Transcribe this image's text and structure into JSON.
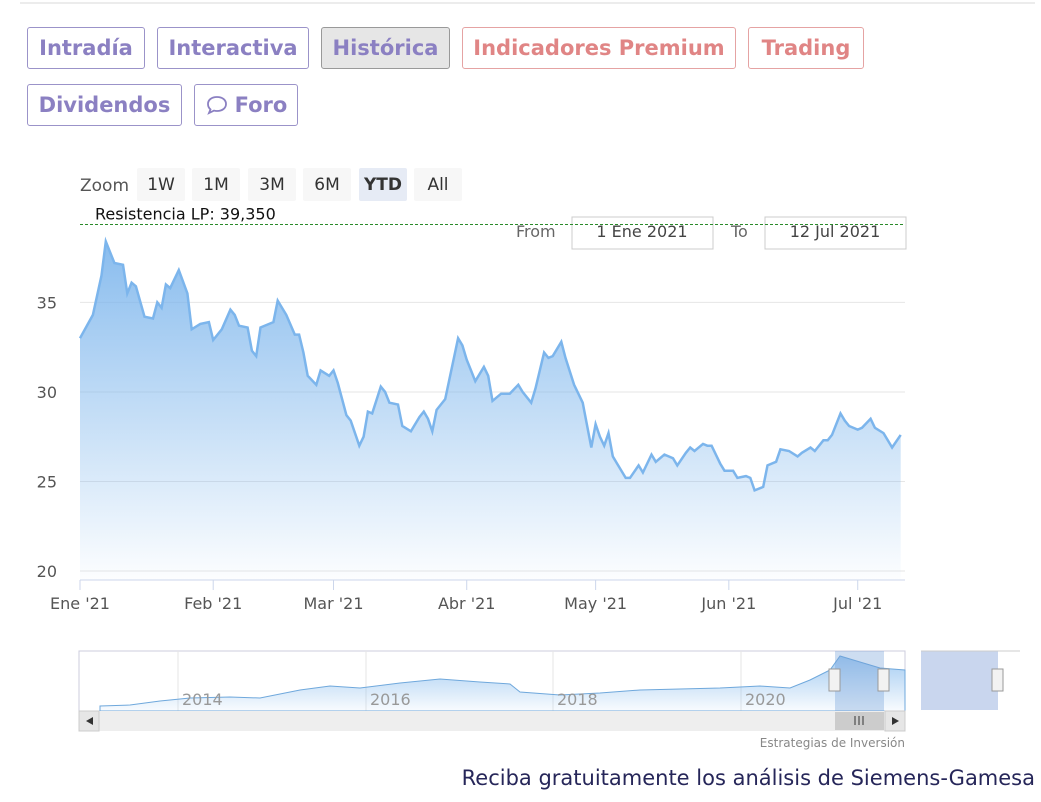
{
  "tabs": [
    "Intradía",
    "Interactiva",
    "Histórica",
    "Indicadores Premium",
    "Trading",
    "Dividendos",
    "Foro"
  ],
  "zoom": {
    "label": "Zoom",
    "buttons": [
      "1W",
      "1M",
      "3M",
      "6M",
      "YTD",
      "All"
    ]
  },
  "range": {
    "from_label": "From",
    "from": "1 Ene 2021",
    "to_label": "To",
    "to": "12 Jul 2021"
  },
  "navigator": {
    "years": [
      "2014",
      "2016",
      "2018",
      "2020"
    ]
  },
  "credit": "Estrategias de Inversión",
  "footer": "Reciba gratuitamente los análisis de Siemens-Gamesa",
  "chart_data": {
    "type": "area",
    "color": "#7cb5ec",
    "x": [
      0,
      3,
      5,
      6,
      8,
      10,
      11,
      12,
      13,
      15,
      17,
      18,
      19,
      20,
      21,
      23,
      25,
      26,
      28,
      30,
      31,
      33,
      35,
      36,
      37,
      39,
      40,
      41,
      42,
      45,
      46,
      48,
      50,
      51,
      52,
      53,
      55,
      56,
      58,
      59,
      60,
      62,
      63,
      65,
      66,
      67,
      68,
      70,
      71,
      72,
      74,
      75,
      77,
      79,
      80,
      81,
      82,
      83,
      85,
      88,
      89,
      90,
      91,
      92,
      94,
      95,
      96,
      98,
      100,
      102,
      103,
      105,
      106,
      108,
      109,
      110,
      112,
      113,
      115,
      117,
      119,
      120,
      121,
      122,
      123,
      124,
      125,
      127,
      128,
      130,
      131,
      133,
      134,
      136,
      138,
      139,
      141,
      142,
      143,
      145,
      146,
      147,
      149,
      150,
      152,
      153,
      155,
      156,
      157,
      159,
      160,
      162,
      163,
      165,
      167,
      168,
      170,
      171,
      173,
      174,
      175,
      177,
      178,
      179,
      181,
      182,
      184,
      185,
      187,
      189,
      191
    ],
    "values": [
      33.0,
      34.3,
      36.5,
      38.4,
      37.2,
      37.1,
      35.5,
      36.1,
      35.9,
      34.2,
      34.1,
      35.0,
      34.7,
      36.0,
      35.8,
      36.8,
      35.5,
      33.5,
      33.8,
      33.9,
      32.9,
      33.5,
      34.6,
      34.3,
      33.7,
      33.6,
      32.3,
      32.0,
      33.6,
      33.9,
      35.1,
      34.3,
      33.2,
      33.2,
      32.2,
      30.9,
      30.4,
      31.2,
      30.9,
      31.2,
      30.5,
      28.7,
      28.4,
      27.0,
      27.5,
      28.9,
      28.8,
      30.3,
      30.0,
      29.4,
      29.3,
      28.1,
      27.8,
      28.6,
      28.9,
      28.5,
      27.8,
      29.0,
      29.6,
      33.0,
      32.6,
      31.8,
      31.2,
      30.6,
      31.4,
      30.9,
      29.5,
      29.9,
      29.9,
      30.4,
      30.0,
      29.4,
      30.2,
      32.2,
      31.9,
      32.0,
      32.8,
      31.9,
      30.4,
      29.4,
      26.9,
      28.2,
      27.5,
      27.0,
      27.7,
      26.4,
      26.0,
      25.2,
      25.2,
      25.9,
      25.5,
      26.5,
      26.1,
      26.5,
      26.3,
      25.9,
      26.6,
      26.9,
      26.7,
      27.1,
      27.0,
      27.0,
      26.0,
      25.6,
      25.6,
      25.2,
      25.3,
      25.2,
      24.5,
      24.7,
      25.9,
      26.1,
      26.8,
      26.7,
      26.4,
      26.6,
      26.9,
      26.7,
      27.3,
      27.3,
      27.6,
      28.8,
      28.4,
      28.1,
      27.9,
      28.0,
      28.5,
      28.0,
      27.7,
      26.9,
      27.6
    ],
    "xlim": [
      0,
      192
    ],
    "xticks": [
      {
        "value": 0,
        "label": "Ene '21"
      },
      {
        "value": 31,
        "label": "Feb '21"
      },
      {
        "value": 59,
        "label": "Mar '21"
      },
      {
        "value": 90,
        "label": "Abr '21"
      },
      {
        "value": 120,
        "label": "May '21"
      },
      {
        "value": 151,
        "label": "Jun '21"
      },
      {
        "value": 181,
        "label": "Jul '21"
      }
    ],
    "ylim": [
      19.5,
      39.6
    ],
    "yticks": [
      20,
      25,
      30,
      35
    ],
    "grid": true,
    "resistance": {
      "label": "Resistencia LP: 39,350",
      "value": 39.35,
      "color": "#2a8a2a"
    }
  }
}
